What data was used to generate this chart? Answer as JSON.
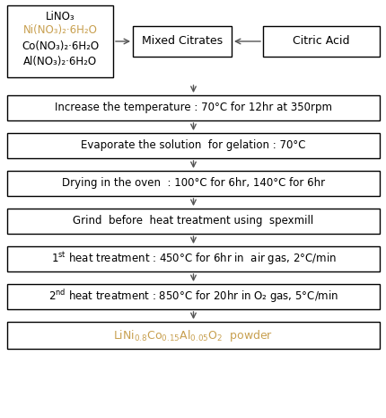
{
  "bg_color": "#ffffff",
  "border_color": "#000000",
  "text_color": "#000000",
  "orange_color": "#c8a050",
  "box_fill": "#ffffff",
  "arrow_color": "#555555",
  "top_left_lines": [
    "LiNO₃",
    "Ni(NO₃)₂·6H₂O",
    "Co(NO₃)₂·6H₂O",
    "Al(NO₃)₂·6H₂O"
  ],
  "top_left_colors": [
    "black",
    "orange",
    "black",
    "black"
  ],
  "mixed_citrates_label": "Mixed Citrates",
  "citric_acid_label": "Citric Acid",
  "flow_steps": [
    "Increase the temperature : 70°C for 12hr at 350rpm",
    "Evaporate the solution  for gelation : 70°C",
    "Drying in the oven  : 100°C for 6hr, 140°C for 6hr",
    "Grind  before  heat treatment using  spexmill",
    "1st heat treatment : 450°C for 6hr in  air gas, 2°C/min",
    "2nd heat treatment : 850°C for 20hr in O₂ gas, 5°C/min"
  ],
  "final_label": "LiNi$_{0.8}$Co$_{0.15}$Al$_{0.05}$O$_{2}$  powder"
}
